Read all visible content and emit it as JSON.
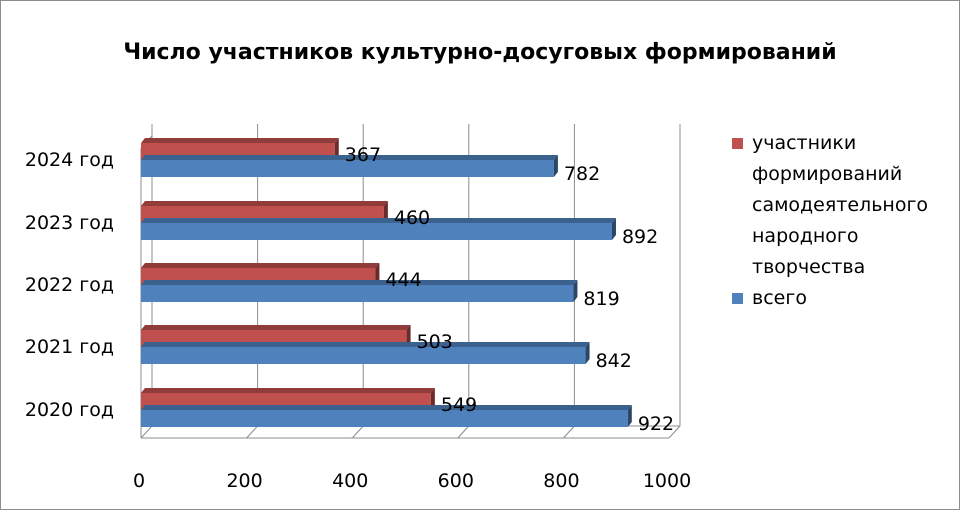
{
  "chart_data": {
    "type": "bar",
    "orientation": "horizontal",
    "title": "Число участников культурно-досуговых формирований",
    "categories": [
      "2024 год",
      "2023 год",
      "2022 год",
      "2021 год",
      "2020 год"
    ],
    "series": [
      {
        "name": "участники формирований самодеятельного народного творчества",
        "values": [
          367,
          460,
          444,
          503,
          549
        ],
        "color": "#c0504d"
      },
      {
        "name": "всего",
        "values": [
          782,
          892,
          819,
          842,
          922
        ],
        "color": "#4f81bd"
      }
    ],
    "xlim": [
      0,
      1000
    ],
    "xticks": [
      0,
      200,
      400,
      600,
      800,
      1000
    ],
    "grid": true,
    "legend_position": "right"
  }
}
